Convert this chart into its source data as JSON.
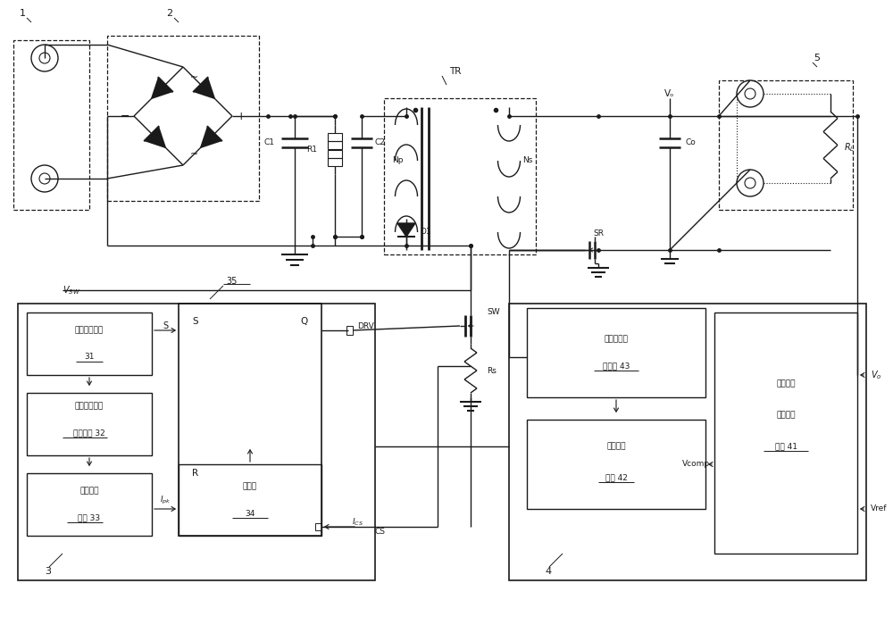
{
  "bg": "#ffffff",
  "lc": "#1a1a1a",
  "fig_w": 10.0,
  "fig_h": 7.0,
  "dpi": 100,
  "texts": {
    "lbl1": "1",
    "lbl2": "2",
    "lbl3": "3",
    "lbl4": "4",
    "lbl5": "5",
    "TR": "TR",
    "Np": "Np",
    "Ns": "Ns",
    "SR": "SR",
    "Vo": "Vₒ",
    "Co": "Co",
    "C1": "C1",
    "C2": "C2",
    "R1": "R1",
    "D1": "D1",
    "Rs": "Rs",
    "RL": "Rₗ",
    "DRV": "DRV",
    "CS": "CS",
    "SW": "SW",
    "VSW": "Vₛᵂ",
    "Ipk": "Iₚₖ",
    "Ics": "Iᴄₛ",
    "Vcomp": "Vcomp",
    "Vref": "Vref",
    "S": "S",
    "R": "R",
    "Q": "Q",
    "lbl35": "35",
    "plus": "+",
    "minus": "−",
    "tilde": "~",
    "u31l1": "电压采样单元",
    "u31l2": "31",
    "u32l1": "目标时间参数",
    "u32l2": "获取单元 32",
    "u33l1": "第一计算",
    "u33l2": "单元 33",
    "u34l1": "比较器",
    "u34l2": "34",
    "u41l1": "误差补偿",
    "u41l2": "信号生成",
    "u41l3": "单元 41",
    "u42l1": "第二计算",
    "u42l2": "单元 42",
    "u43l1": "控制信号生",
    "u43l2": "成单元 43"
  }
}
